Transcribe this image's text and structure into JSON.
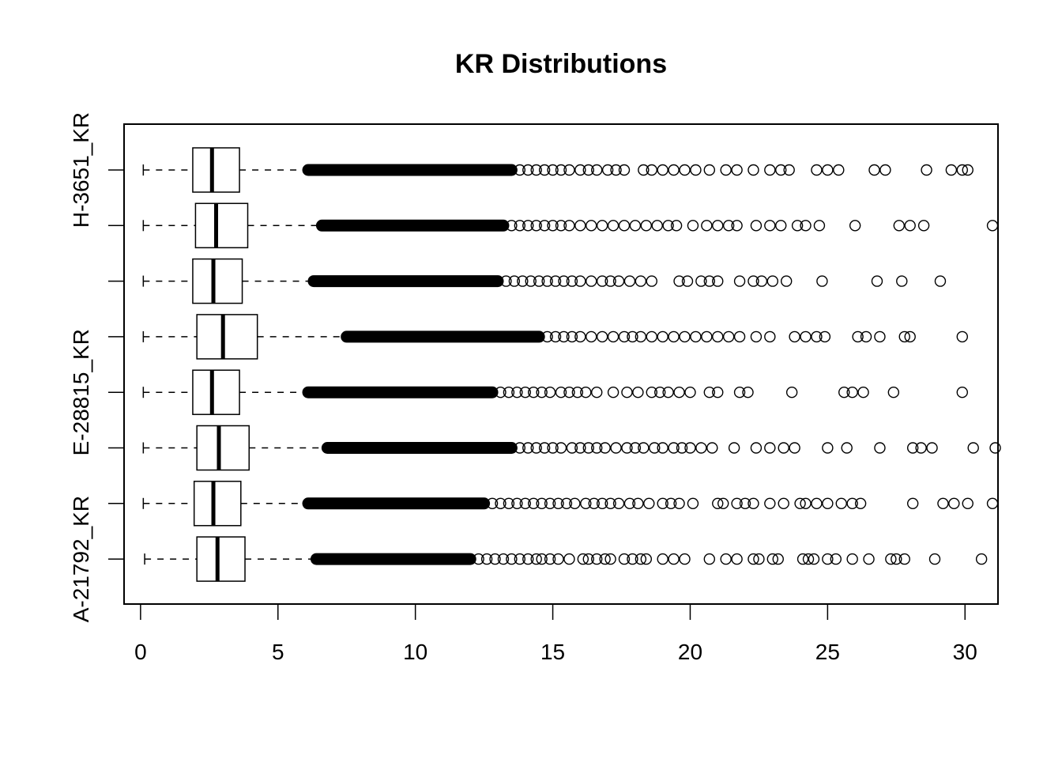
{
  "chart_data": {
    "type": "boxplot",
    "orientation": "horizontal",
    "title": "KR Distributions",
    "xlabel": "",
    "ylabel": "",
    "xlim": [
      -0.6,
      31.2
    ],
    "x_ticks": [
      0,
      5,
      10,
      15,
      20,
      25,
      30
    ],
    "grid": false,
    "legend": "none",
    "colors": {
      "line": "#000000",
      "box_fill": "#ffffff"
    },
    "groups": [
      {
        "label": "A-21792_KR",
        "whisker_low": 0.15,
        "q1": 2.05,
        "median": 2.8,
        "q3": 3.8,
        "whisker_high": 6.4,
        "dense_outlier_range": [
          6.4,
          12.0
        ],
        "outliers": [
          12.3,
          12.6,
          12.9,
          13.2,
          13.5,
          13.8,
          14.1,
          14.4,
          14.6,
          14.9,
          15.2,
          15.6,
          16.1,
          16.3,
          16.6,
          16.9,
          17.1,
          17.6,
          17.9,
          18.2,
          18.4,
          19.0,
          19.4,
          19.8,
          20.7,
          21.3,
          21.7,
          22.3,
          22.5,
          23.0,
          23.2,
          24.1,
          24.3,
          24.5,
          25.0,
          25.3,
          25.9,
          26.5,
          27.3,
          27.5,
          27.8,
          28.9,
          30.6
        ]
      },
      {
        "label": "",
        "whisker_low": 0.1,
        "q1": 1.95,
        "median": 2.65,
        "q3": 3.65,
        "whisker_high": 6.1,
        "dense_outlier_range": [
          6.1,
          12.5
        ],
        "outliers": [
          12.8,
          13.1,
          13.4,
          13.7,
          14.0,
          14.3,
          14.6,
          14.9,
          15.2,
          15.5,
          15.8,
          16.2,
          16.5,
          16.8,
          17.1,
          17.4,
          17.8,
          18.1,
          18.5,
          19.0,
          19.3,
          19.6,
          20.1,
          21.0,
          21.2,
          21.7,
          22.0,
          22.3,
          22.9,
          23.4,
          24.0,
          24.2,
          24.6,
          25.0,
          25.5,
          25.9,
          26.2,
          28.1,
          29.2,
          29.6,
          30.1,
          31.0
        ]
      },
      {
        "label": "",
        "whisker_low": 0.1,
        "q1": 2.05,
        "median": 2.85,
        "q3": 3.95,
        "whisker_high": 6.8,
        "dense_outlier_range": [
          6.8,
          13.5
        ],
        "outliers": [
          13.8,
          14.1,
          14.4,
          14.7,
          15.0,
          15.3,
          15.7,
          16.0,
          16.3,
          16.6,
          16.9,
          17.3,
          17.7,
          18.0,
          18.3,
          18.7,
          19.0,
          19.4,
          19.7,
          20.0,
          20.4,
          20.8,
          21.6,
          22.4,
          22.9,
          23.4,
          23.8,
          25.0,
          25.7,
          26.9,
          28.1,
          28.4,
          28.8,
          30.3,
          31.1
        ]
      },
      {
        "label": "E-28815_KR",
        "whisker_low": 0.1,
        "q1": 1.9,
        "median": 2.6,
        "q3": 3.6,
        "whisker_high": 6.1,
        "dense_outlier_range": [
          6.1,
          12.8
        ],
        "outliers": [
          13.1,
          13.4,
          13.7,
          14.0,
          14.3,
          14.6,
          14.9,
          15.3,
          15.6,
          15.9,
          16.2,
          16.6,
          17.2,
          17.7,
          18.1,
          18.6,
          18.9,
          19.2,
          19.6,
          20.0,
          20.7,
          21.0,
          21.8,
          22.1,
          23.7,
          25.6,
          25.9,
          26.3,
          27.4,
          29.9
        ]
      },
      {
        "label": "",
        "whisker_low": 0.1,
        "q1": 2.05,
        "median": 3.0,
        "q3": 4.25,
        "whisker_high": 7.5,
        "dense_outlier_range": [
          7.5,
          14.5
        ],
        "outliers": [
          14.8,
          15.1,
          15.4,
          15.7,
          16.0,
          16.4,
          16.8,
          17.2,
          17.6,
          17.9,
          18.2,
          18.6,
          19.0,
          19.4,
          19.8,
          20.2,
          20.6,
          21.0,
          21.4,
          21.8,
          22.4,
          22.9,
          23.8,
          24.2,
          24.6,
          24.9,
          26.1,
          26.4,
          26.9,
          27.8,
          28.0,
          29.9
        ]
      },
      {
        "label": "",
        "whisker_low": 0.1,
        "q1": 1.9,
        "median": 2.65,
        "q3": 3.7,
        "whisker_high": 6.3,
        "dense_outlier_range": [
          6.3,
          13.0
        ],
        "outliers": [
          13.3,
          13.6,
          13.9,
          14.2,
          14.5,
          14.8,
          15.1,
          15.4,
          15.7,
          16.0,
          16.4,
          16.8,
          17.1,
          17.4,
          17.8,
          18.2,
          18.6,
          19.6,
          19.9,
          20.4,
          20.7,
          21.0,
          21.8,
          22.3,
          22.6,
          23.0,
          23.5,
          24.8,
          26.8,
          27.7,
          29.1
        ]
      },
      {
        "label": "",
        "whisker_low": 0.1,
        "q1": 2.0,
        "median": 2.75,
        "q3": 3.9,
        "whisker_high": 6.6,
        "dense_outlier_range": [
          6.6,
          13.2
        ],
        "outliers": [
          13.5,
          13.8,
          14.1,
          14.4,
          14.7,
          15.0,
          15.3,
          15.6,
          16.0,
          16.4,
          16.8,
          17.2,
          17.6,
          18.0,
          18.4,
          18.8,
          19.2,
          19.5,
          20.1,
          20.6,
          21.0,
          21.4,
          21.7,
          22.4,
          22.9,
          23.3,
          23.9,
          24.2,
          24.7,
          26.0,
          27.6,
          28.0,
          28.5,
          31.0
        ]
      },
      {
        "label": "H-3651_KR",
        "whisker_low": 0.1,
        "q1": 1.9,
        "median": 2.6,
        "q3": 3.6,
        "whisker_high": 6.1,
        "dense_outlier_range": [
          6.1,
          13.5
        ],
        "outliers": [
          13.8,
          14.1,
          14.4,
          14.7,
          15.0,
          15.3,
          15.6,
          16.0,
          16.3,
          16.6,
          17.0,
          17.3,
          17.6,
          18.3,
          18.6,
          19.0,
          19.4,
          19.8,
          20.2,
          20.7,
          21.3,
          21.7,
          22.3,
          22.9,
          23.3,
          23.6,
          24.6,
          25.0,
          25.4,
          26.7,
          27.1,
          28.6,
          29.5,
          29.9,
          30.1
        ]
      }
    ]
  }
}
